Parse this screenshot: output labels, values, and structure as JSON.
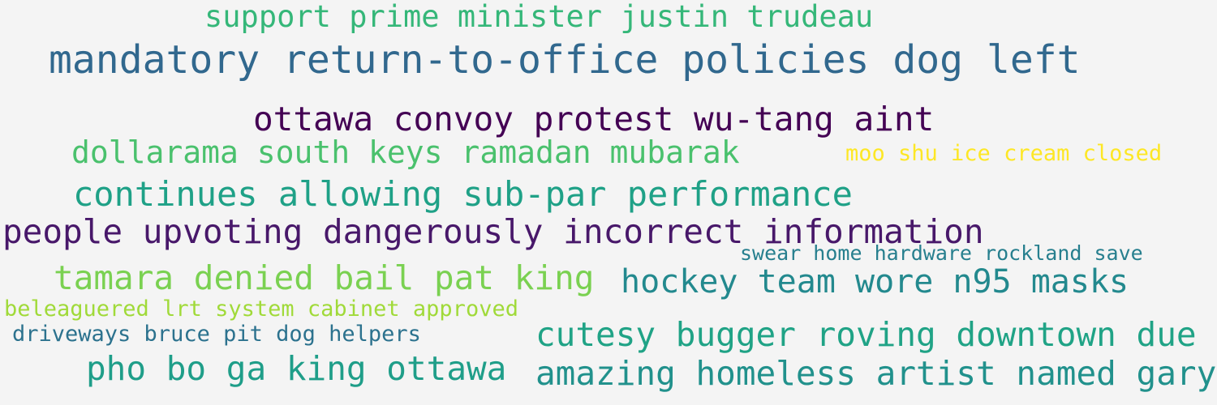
{
  "phrases": [
    {
      "text": "support prime minister justin trudeau",
      "color": "#35b779"
    },
    {
      "text": "mandatory return-to-office policies dog left",
      "color": "#31688e"
    },
    {
      "text": "ottawa convoy protest wu-tang aint",
      "color": "#440154"
    },
    {
      "text": "dollarama south keys ramadan mubarak",
      "color": "#4ac16d"
    },
    {
      "text": "moo shu ice cream closed",
      "color": "#fde725"
    },
    {
      "text": "continues allowing sub-par performance",
      "color": "#1fa187"
    },
    {
      "text": "people upvoting dangerously incorrect information",
      "color": "#48186a"
    },
    {
      "text": "swear home hardware rockland save",
      "color": "#277f8e"
    },
    {
      "text": "tamara denied bail pat king",
      "color": "#7ad151"
    },
    {
      "text": "hockey team wore n95 masks",
      "color": "#23898e"
    },
    {
      "text": "beleaguered lrt system cabinet approved",
      "color": "#a0da39"
    },
    {
      "text": "driveways bruce pit dog helpers",
      "color": "#2c728e"
    },
    {
      "text": "cutesy bugger roving downtown due",
      "color": "#20a386"
    },
    {
      "text": "pho bo ga king ottawa",
      "color": "#1f9e89"
    },
    {
      "text": "amazing homeless artist named gary",
      "color": "#21918c"
    }
  ]
}
